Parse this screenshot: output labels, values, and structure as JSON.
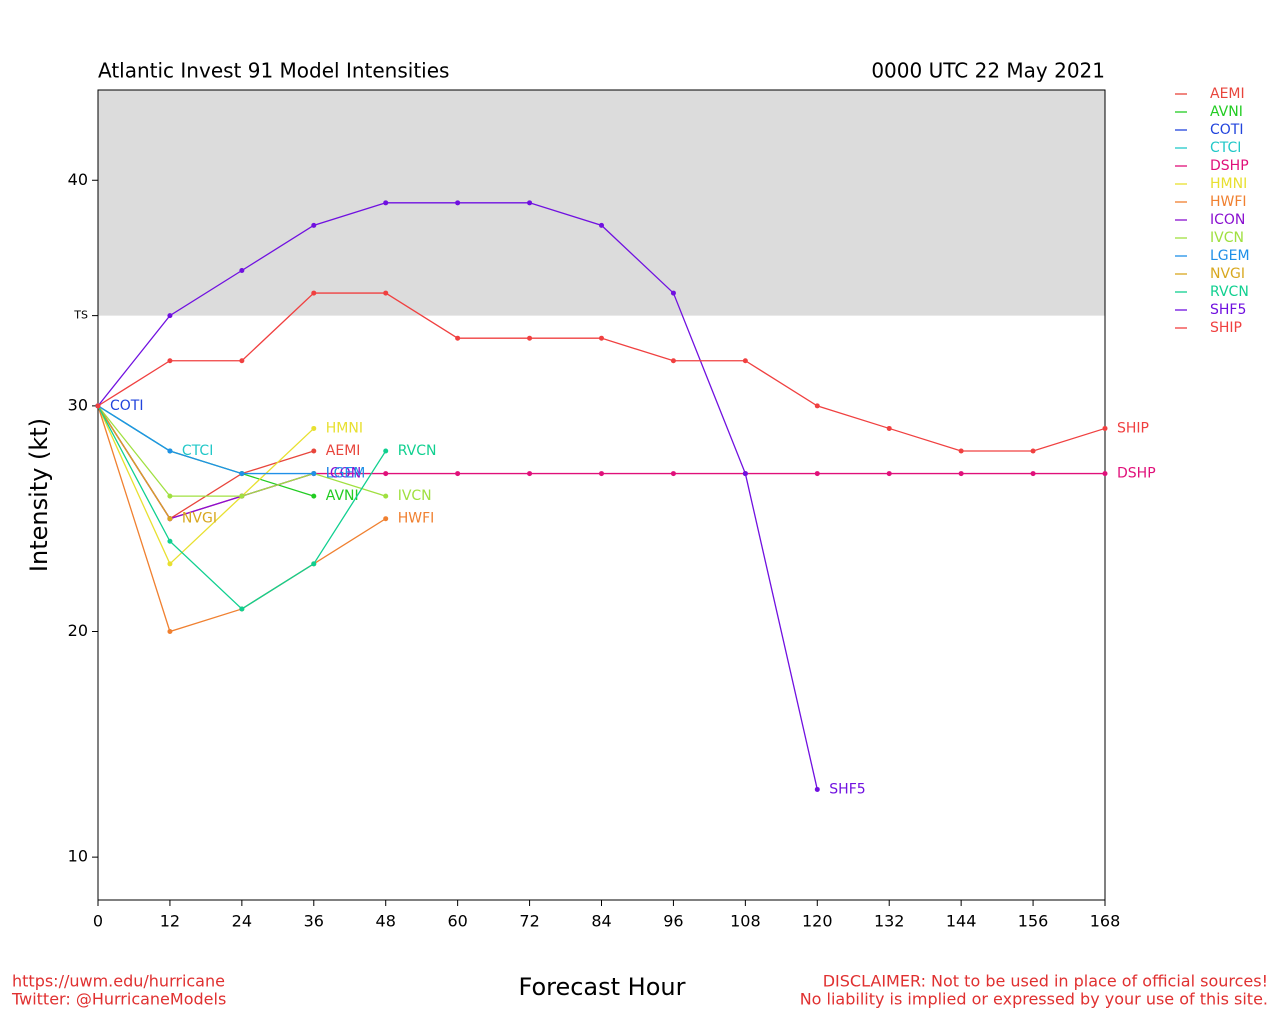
{
  "chart_data": {
    "type": "line",
    "title": "Atlantic Invest 91 Model Intensities",
    "subtitle": "0000 UTC 22 May 2021",
    "y_label": "Intensity (kt)",
    "x_label": "Forecast Hour",
    "x": [
      0,
      12,
      24,
      36,
      48,
      60,
      72,
      84,
      96,
      108,
      120,
      132,
      144,
      156,
      168
    ],
    "xlim": [
      0,
      168
    ],
    "xticks": [
      0,
      12,
      24,
      36,
      48,
      60,
      72,
      84,
      96,
      108,
      120,
      132,
      144,
      156,
      168
    ],
    "ylim": [
      8.1,
      44
    ],
    "yticks": [
      10,
      20,
      30,
      {
        "value": 34,
        "label": "TS"
      },
      40
    ],
    "band": [
      34,
      44
    ],
    "series": [
      {
        "name": "AEMI",
        "color": "#e8453c",
        "values": [
          30,
          25,
          27,
          28,
          null,
          null,
          null,
          null,
          null,
          null,
          null,
          null,
          null,
          null,
          null
        ]
      },
      {
        "name": "AVNI",
        "color": "#22cc22",
        "values": [
          30,
          28,
          27,
          26,
          null,
          null,
          null,
          null,
          null,
          null,
          null,
          null,
          null,
          null,
          null
        ]
      },
      {
        "name": "COTI",
        "color": "#2244dd",
        "values": [
          30,
          null,
          null,
          null,
          null,
          null,
          null,
          null,
          null,
          null,
          null,
          null,
          null,
          null,
          null
        ]
      },
      {
        "name": "CTCI",
        "color": "#22c8c8",
        "values": [
          30,
          28,
          null,
          null,
          null,
          null,
          null,
          null,
          null,
          null,
          null,
          null,
          null,
          null,
          null
        ]
      },
      {
        "name": "DSHP",
        "color": "#e0107a",
        "values": [
          30,
          25,
          26,
          27,
          27,
          27,
          27,
          27,
          27,
          27,
          27,
          27,
          27,
          27,
          27
        ]
      },
      {
        "name": "HMNI",
        "color": "#e8e030",
        "values": [
          30,
          23,
          26,
          29,
          null,
          null,
          null,
          null,
          null,
          null,
          null,
          null,
          null,
          null,
          null
        ]
      },
      {
        "name": "HWFI",
        "color": "#f08030",
        "values": [
          30,
          20,
          21,
          23,
          25,
          null,
          null,
          null,
          null,
          null,
          null,
          null,
          null,
          null,
          null
        ]
      },
      {
        "name": "ICON",
        "color": "#8a10d0",
        "values": [
          30,
          25,
          26,
          27,
          null,
          null,
          null,
          null,
          null,
          null,
          null,
          null,
          null,
          null,
          null
        ]
      },
      {
        "name": "IVCN",
        "color": "#a0e040",
        "values": [
          30,
          26,
          26,
          27,
          26,
          null,
          null,
          null,
          null,
          null,
          null,
          null,
          null,
          null,
          null
        ]
      },
      {
        "name": "LGEM",
        "color": "#2090e8",
        "values": [
          30,
          28,
          27,
          27,
          null,
          null,
          null,
          null,
          null,
          null,
          null,
          null,
          null,
          null,
          null
        ]
      },
      {
        "name": "NVGI",
        "color": "#d8a820",
        "values": [
          30,
          25,
          null,
          null,
          null,
          null,
          null,
          null,
          null,
          null,
          null,
          null,
          null,
          null,
          null
        ]
      },
      {
        "name": "RVCN",
        "color": "#10d090",
        "values": [
          30,
          24,
          21,
          23,
          28,
          null,
          null,
          null,
          null,
          null,
          null,
          null,
          null,
          null,
          null
        ]
      },
      {
        "name": "SHF5",
        "color": "#7010e0",
        "values": [
          30,
          34,
          36,
          38,
          39,
          39,
          39,
          38,
          35,
          27,
          13,
          null,
          null,
          null,
          null
        ]
      },
      {
        "name": "SHIP",
        "color": "#f04040",
        "values": [
          30,
          32,
          32,
          35,
          35,
          33,
          33,
          33,
          32,
          32,
          30,
          29,
          28,
          28,
          29
        ]
      }
    ]
  },
  "footer": {
    "left": [
      "https://uwm.edu/hurricane",
      "Twitter: @HurricaneModels"
    ],
    "right": [
      "DISCLAIMER: Not to be used in place of official sources!",
      "No liability is implied or expressed by your use of this site."
    ]
  }
}
